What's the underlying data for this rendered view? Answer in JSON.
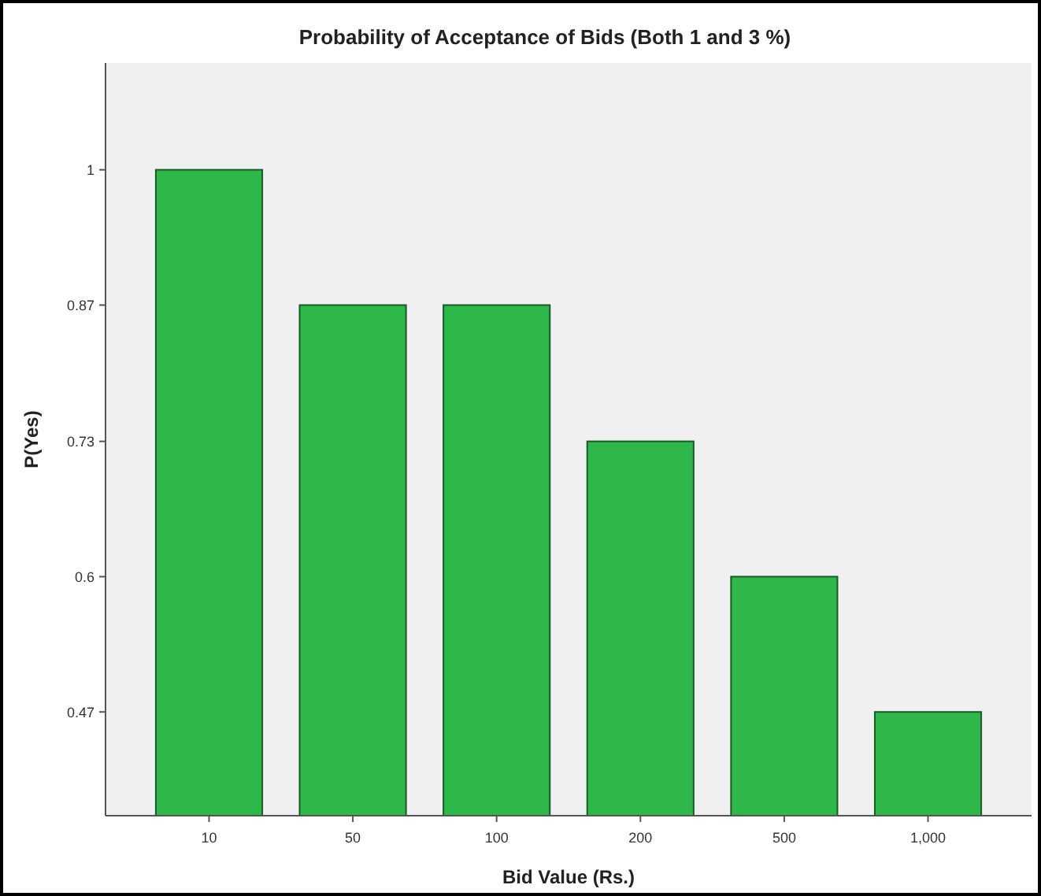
{
  "chart_data": {
    "type": "bar",
    "title": "Probability of Acceptance of Bids (Both 1 and 3 %)",
    "xlabel": "Bid Value (Rs.)",
    "ylabel": "P(Yes)",
    "categories": [
      "10",
      "50",
      "100",
      "200",
      "500",
      "1,000"
    ],
    "values": [
      1,
      0.867,
      0.867,
      0.733,
      0.6,
      0.467
    ],
    "color": "#2eb84a",
    "ylim": [
      0.365,
      1.105
    ],
    "yticks": [
      {
        "value": 0.467,
        "label": "0.47"
      },
      {
        "value": 0.6,
        "label": "0.6"
      },
      {
        "value": 0.733,
        "label": "0.73"
      },
      {
        "value": 0.867,
        "label": "0.87"
      },
      1
    ],
    "grid": false
  }
}
